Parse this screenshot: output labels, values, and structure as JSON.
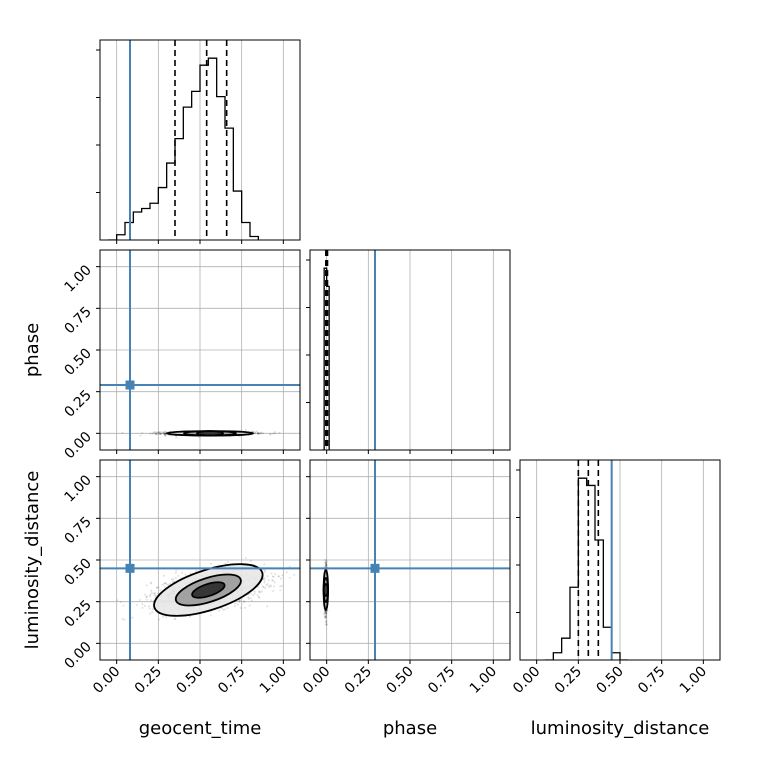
{
  "chart_data": {
    "type": "corner",
    "parameters": [
      "geocent_time",
      "phase",
      "luminosity_distance"
    ],
    "axis_range": [
      -0.1,
      1.1
    ],
    "ticks": [
      0.0,
      0.25,
      0.5,
      0.75,
      1.0
    ],
    "tick_labels": [
      "0.00",
      "0.25",
      "0.50",
      "0.75",
      "1.00"
    ],
    "grid": true,
    "truths": {
      "geocent_time": 0.08,
      "phase": 0.29,
      "luminosity_distance": 0.45
    },
    "truth_color": "#4682b4",
    "histograms": {
      "geocent_time": {
        "bin_edges": [
          -0.05,
          0.0,
          0.05,
          0.1,
          0.15,
          0.2,
          0.25,
          0.3,
          0.35,
          0.4,
          0.45,
          0.5,
          0.55,
          0.6,
          0.65,
          0.7,
          0.75,
          0.8,
          0.85
        ],
        "counts": [
          0.0,
          0.03,
          0.1,
          0.16,
          0.18,
          0.21,
          0.3,
          0.44,
          0.58,
          0.76,
          0.85,
          1.0,
          1.04,
          0.82,
          0.64,
          0.28,
          0.1,
          0.02
        ],
        "quantile_lines": [
          0.35,
          0.54,
          0.66
        ]
      },
      "phase": {
        "bin_edges": [
          -0.03,
          -0.015,
          0.0,
          0.015
        ],
        "counts": [
          0.0,
          1.0,
          0.9
        ],
        "quantile_lines": [
          -0.005,
          0.0,
          0.005
        ]
      },
      "luminosity_distance": {
        "bin_edges": [
          0.05,
          0.1,
          0.15,
          0.2,
          0.25,
          0.3,
          0.35,
          0.4,
          0.45,
          0.5,
          0.55
        ],
        "counts": [
          0.0,
          0.04,
          0.12,
          0.4,
          1.0,
          0.96,
          0.66,
          0.18,
          0.04,
          0.0
        ],
        "quantile_lines": [
          0.25,
          0.31,
          0.37
        ]
      }
    },
    "joint_distributions": [
      {
        "x": "geocent_time",
        "y": "phase",
        "mean": [
          0.56,
          0.0
        ],
        "spread": [
          0.13,
          0.006
        ],
        "corr": 0.0
      },
      {
        "x": "geocent_time",
        "y": "luminosity_distance",
        "mean": [
          0.55,
          0.32
        ],
        "spread": [
          0.17,
          0.06
        ],
        "corr": 0.45
      },
      {
        "x": "phase",
        "y": "luminosity_distance",
        "mean": [
          -0.005,
          0.32
        ],
        "spread": [
          0.004,
          0.06
        ],
        "corr": 0.0
      }
    ]
  }
}
